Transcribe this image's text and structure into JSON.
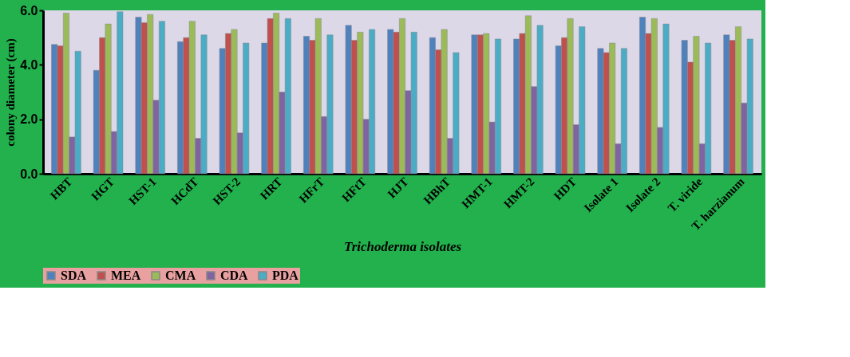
{
  "chart_data": {
    "type": "bar",
    "xlabel": "Trichoderma isolates",
    "ylabel": "colony diameter (cm)",
    "categories": [
      "HBT",
      "HGT",
      "HST-1",
      "HCdT",
      "HST-2",
      "HRT",
      "HFrT",
      "HFtT",
      "HJT",
      "HBhT",
      "HMT-1",
      "HMT-2",
      "HDT",
      "Isolate 1",
      "Isolate 2",
      "T. viride",
      "T. harzianum"
    ],
    "series": [
      {
        "name": "SDA",
        "color": "#4f81bd",
        "values": [
          4.75,
          3.8,
          5.75,
          4.85,
          4.6,
          4.8,
          5.05,
          5.45,
          5.3,
          5.0,
          5.1,
          4.95,
          4.7,
          4.6,
          5.75,
          4.9,
          5.1
        ]
      },
      {
        "name": "MEA",
        "color": "#c0504d",
        "values": [
          4.7,
          5.0,
          5.55,
          5.0,
          5.15,
          5.7,
          4.9,
          4.9,
          5.2,
          4.55,
          5.1,
          5.15,
          5.0,
          4.45,
          5.15,
          4.1,
          4.9
        ]
      },
      {
        "name": "CMA",
        "color": "#9bbb59",
        "values": [
          5.9,
          5.5,
          5.85,
          5.6,
          5.3,
          5.9,
          5.7,
          5.2,
          5.7,
          5.3,
          5.15,
          5.8,
          5.7,
          4.8,
          5.7,
          5.05,
          5.4
        ]
      },
      {
        "name": "CDA",
        "color": "#8064a2",
        "values": [
          1.35,
          1.55,
          2.7,
          1.3,
          1.5,
          3.0,
          2.1,
          2.0,
          3.05,
          1.3,
          1.9,
          3.2,
          1.8,
          1.1,
          1.7,
          1.1,
          2.6
        ]
      },
      {
        "name": "PDA",
        "color": "#4bacc6",
        "values": [
          4.5,
          5.95,
          5.6,
          5.1,
          4.8,
          5.7,
          5.1,
          5.3,
          5.2,
          4.45,
          4.95,
          5.45,
          5.4,
          4.6,
          5.5,
          4.8,
          4.95
        ]
      }
    ],
    "ylim": [
      0,
      6
    ],
    "yticks": [
      {
        "value": 0,
        "label": "0.0"
      },
      {
        "value": 2,
        "label": "2.0"
      },
      {
        "value": 4,
        "label": "4.0"
      },
      {
        "value": 6,
        "label": "6.0"
      }
    ],
    "grid": false,
    "legend": "bottom"
  }
}
